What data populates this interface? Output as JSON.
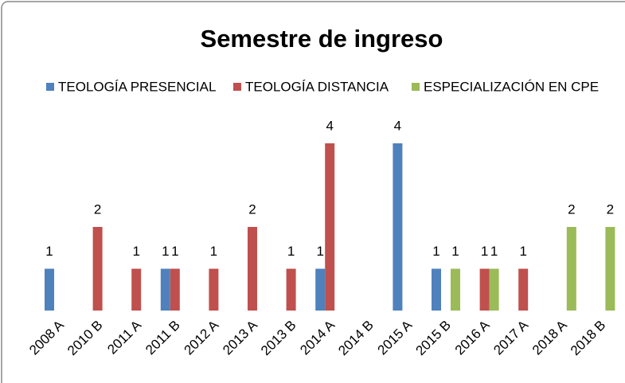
{
  "chart_data": {
    "type": "bar",
    "title": "Semestre  de ingreso",
    "categories": [
      "2008 A",
      "2010 B",
      "2011 A",
      "2011 B",
      "2012 A",
      "2013 A",
      "2013 B",
      "2014 A",
      "2014 B",
      "2015 A",
      "2015 B",
      "2016 A",
      "2017 A",
      "2018 A",
      "2018 B"
    ],
    "series": [
      {
        "name": "TEOLOGÍA PRESENCIAL",
        "color": "#4f81bd",
        "values": [
          1,
          null,
          null,
          1,
          null,
          null,
          null,
          1,
          null,
          4,
          1,
          null,
          null,
          null,
          null
        ]
      },
      {
        "name": "TEOLOGÍA DISTANCIA",
        "color": "#c0504d",
        "values": [
          null,
          2,
          1,
          1,
          1,
          2,
          1,
          4,
          null,
          null,
          null,
          1,
          1,
          null,
          null
        ]
      },
      {
        "name": "ESPECIALIZACIÓN EN CPE",
        "color": "#9bbb59",
        "values": [
          null,
          null,
          null,
          null,
          null,
          null,
          null,
          null,
          null,
          null,
          1,
          1,
          null,
          2,
          2
        ]
      }
    ],
    "legend": "top"
  }
}
